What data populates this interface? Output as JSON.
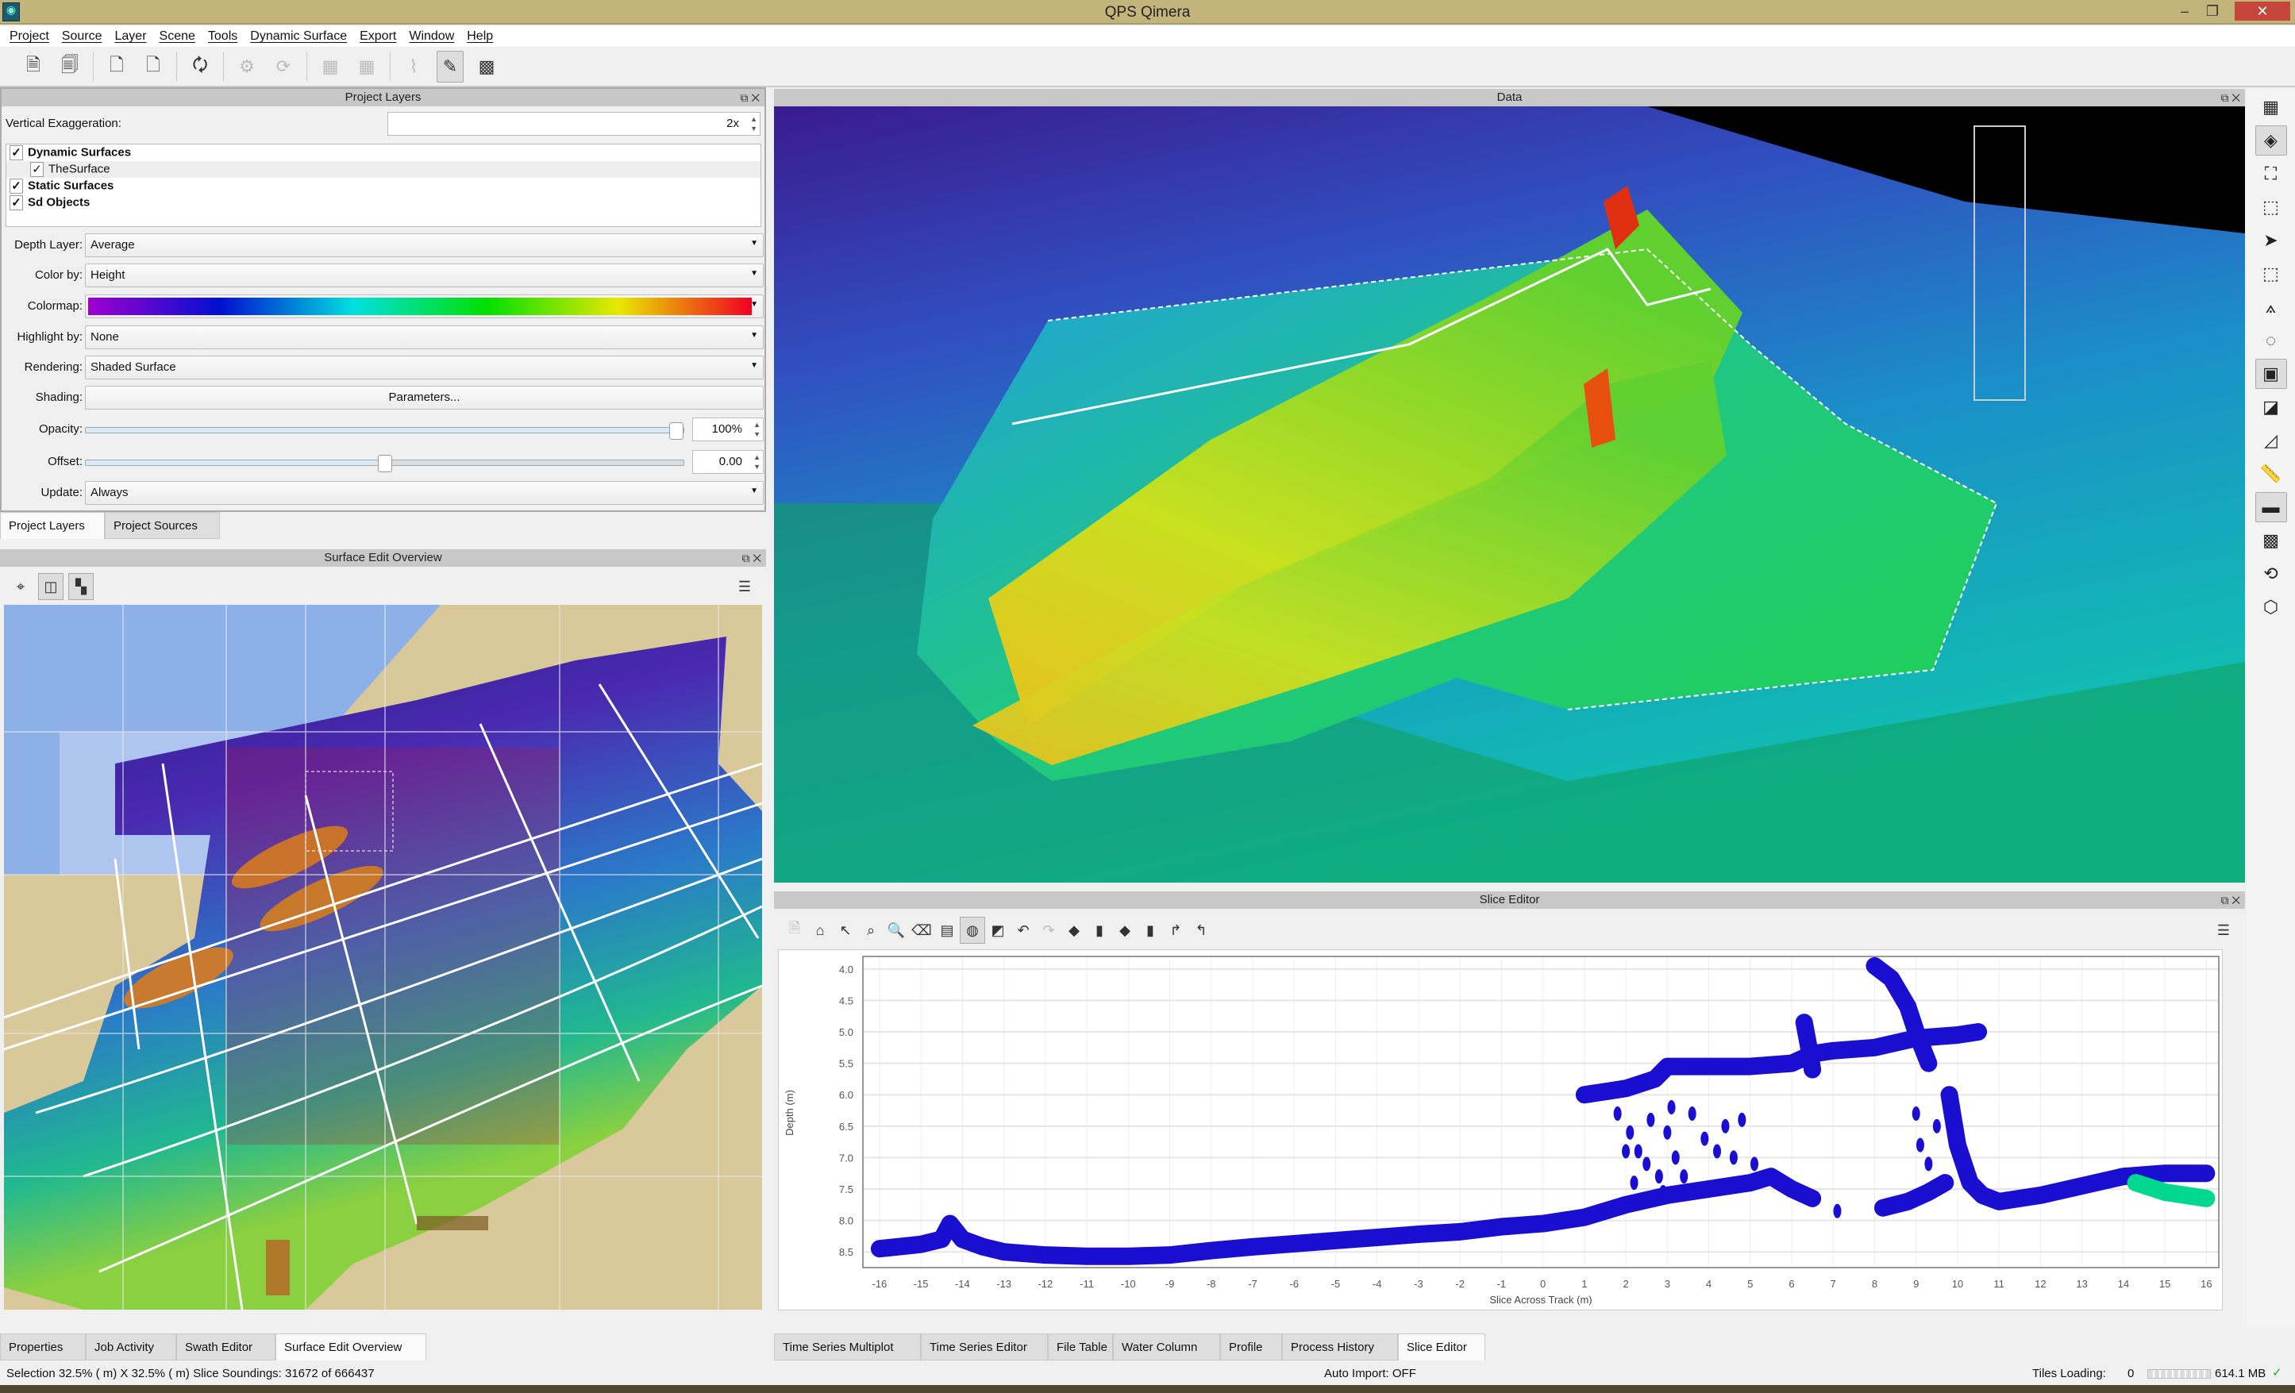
{
  "window": {
    "title": "QPS Qimera",
    "minimize": "–",
    "restore": "❐",
    "close": "✕"
  },
  "menu": [
    "Project",
    "Source",
    "Layer",
    "Scene",
    "Tools",
    "Dynamic Surface",
    "Export",
    "Window",
    "Help"
  ],
  "project_layers": {
    "title": "Project Layers",
    "vertical_exaggeration_label": "Vertical Exaggeration:",
    "vertical_exaggeration": "2x",
    "layers": [
      {
        "label": "Dynamic Surfaces",
        "checked": true,
        "bold": true
      },
      {
        "label": "TheSurface",
        "checked": true,
        "bold": false
      },
      {
        "label": "Static Surfaces",
        "checked": true,
        "bold": true
      },
      {
        "label": "Sd Objects",
        "checked": true,
        "bold": true
      }
    ],
    "depth_layer_label": "Depth Layer:",
    "depth_layer": "Average",
    "color_by_label": "Color by:",
    "color_by": "Height",
    "colormap_label": "Colormap:",
    "colormap_colors": [
      "#a000d0",
      "#0010d0",
      "#00e0e0",
      "#00e000",
      "#e8e800",
      "#f00020"
    ],
    "highlight_by_label": "Highlight by:",
    "highlight_by": "None",
    "rendering_label": "Rendering:",
    "rendering": "Shaded Surface",
    "shading_label": "Shading:",
    "shading_button": "Parameters...",
    "opacity_label": "Opacity:",
    "opacity": "100%",
    "opacity_fraction": 1.0,
    "offset_label": "Offset:",
    "offset": "0.00",
    "offset_fraction": 0.5,
    "update_label": "Update:",
    "update": "Always",
    "tabs": [
      "Project Layers",
      "Project Sources"
    ]
  },
  "surface_edit_overview": {
    "title": "Surface Edit Overview"
  },
  "data_view": {
    "title": "Data"
  },
  "slice_editor": {
    "title": "Slice Editor"
  },
  "chart_data": {
    "type": "scatter",
    "xlabel": "Slice Across Track (m)",
    "ylabel": "Depth (m)",
    "xlim": [
      -16.4,
      16.3
    ],
    "ylim": [
      3.8,
      8.75
    ],
    "y_inverted": true,
    "grid": true,
    "xticks": [
      -16,
      -15,
      -14,
      -13,
      -12,
      -11,
      -10,
      -9,
      -8,
      -7,
      -6,
      -5,
      -4,
      -3,
      -2,
      -1,
      0,
      1,
      2,
      3,
      4,
      5,
      6,
      7,
      8,
      9,
      10,
      11,
      12,
      13,
      14,
      15,
      16
    ],
    "yticks": [
      "4.0",
      "4.5",
      "5.0",
      "5.5",
      "6.0",
      "6.5",
      "7.0",
      "7.5",
      "8.0",
      "8.5"
    ],
    "series": [
      {
        "color": "#1a0fd0",
        "profile": [
          [
            -16,
            8.45
          ],
          [
            -15,
            8.38
          ],
          [
            -14.5,
            8.3
          ],
          [
            -14.3,
            8.05
          ],
          [
            -14,
            8.3
          ],
          [
            -13.5,
            8.42
          ],
          [
            -13,
            8.5
          ],
          [
            -12,
            8.55
          ],
          [
            -11,
            8.57
          ],
          [
            -10,
            8.57
          ],
          [
            -9,
            8.55
          ],
          [
            -8,
            8.48
          ],
          [
            -7,
            8.42
          ],
          [
            -6,
            8.37
          ],
          [
            -5,
            8.32
          ],
          [
            -4,
            8.27
          ],
          [
            -3,
            8.22
          ],
          [
            -2,
            8.18
          ],
          [
            -1,
            8.1
          ],
          [
            0,
            8.05
          ],
          [
            1,
            7.95
          ],
          [
            2,
            7.75
          ],
          [
            3,
            7.6
          ],
          [
            4,
            7.5
          ],
          [
            5,
            7.4
          ],
          [
            5.5,
            7.3
          ],
          [
            6,
            7.5
          ],
          [
            6.5,
            7.65
          ]
        ]
      },
      {
        "color": "#1a0fd0",
        "profile": [
          [
            1,
            6.0
          ],
          [
            2,
            5.9
          ],
          [
            2.7,
            5.75
          ],
          [
            3,
            5.55
          ],
          [
            4,
            5.55
          ],
          [
            5,
            5.55
          ],
          [
            6,
            5.5
          ],
          [
            6.5,
            5.35
          ],
          [
            7,
            5.3
          ],
          [
            8,
            5.25
          ],
          [
            9,
            5.1
          ],
          [
            10,
            5.05
          ],
          [
            10.5,
            5.0
          ]
        ]
      },
      {
        "color": "#1a0fd0",
        "profile": [
          [
            8,
            3.95
          ],
          [
            8.4,
            4.15
          ],
          [
            8.8,
            4.6
          ],
          [
            9,
            5.0
          ],
          [
            9.3,
            5.5
          ]
        ]
      },
      {
        "color": "#1a0fd0",
        "profile": [
          [
            6.3,
            4.85
          ],
          [
            6.4,
            5.2
          ],
          [
            6.5,
            5.6
          ]
        ]
      },
      {
        "color": "#1a0fd0",
        "profile": [
          [
            9.8,
            6.0
          ],
          [
            10,
            6.8
          ],
          [
            10.3,
            7.4
          ],
          [
            10.6,
            7.6
          ],
          [
            11,
            7.7
          ],
          [
            12,
            7.6
          ],
          [
            13,
            7.45
          ],
          [
            14,
            7.3
          ],
          [
            15,
            7.25
          ],
          [
            16,
            7.25
          ]
        ]
      },
      {
        "color": "#00d890",
        "profile": [
          [
            14.3,
            7.4
          ],
          [
            15,
            7.55
          ],
          [
            16,
            7.65
          ]
        ]
      },
      {
        "color": "#1a0fd0",
        "profile": [
          [
            8.2,
            7.8
          ],
          [
            8.8,
            7.7
          ],
          [
            9.3,
            7.55
          ],
          [
            9.7,
            7.4
          ]
        ]
      }
    ],
    "scatter_points": [
      [
        1.8,
        6.3
      ],
      [
        2.1,
        6.6
      ],
      [
        2.3,
        6.9
      ],
      [
        2.5,
        7.1
      ],
      [
        2.8,
        7.3
      ],
      [
        3.0,
        6.6
      ],
      [
        3.2,
        7.0
      ],
      [
        3.4,
        7.3
      ],
      [
        2.6,
        6.4
      ],
      [
        3.6,
        6.3
      ],
      [
        3.9,
        6.7
      ],
      [
        4.2,
        6.9
      ],
      [
        4.6,
        7.0
      ],
      [
        4.8,
        6.4
      ],
      [
        4.9,
        7.4
      ],
      [
        5.1,
        7.1
      ],
      [
        2.2,
        7.4
      ],
      [
        2.9,
        7.55
      ],
      [
        4.4,
        6.5
      ],
      [
        3.1,
        6.2
      ],
      [
        2.0,
        6.9
      ],
      [
        9.0,
        6.3
      ],
      [
        9.1,
        6.8
      ],
      [
        9.3,
        7.1
      ],
      [
        9.0,
        7.65
      ],
      [
        9.5,
        6.5
      ],
      [
        7.1,
        7.85
      ]
    ]
  },
  "bottom_tabs_left": [
    "Properties",
    "Job Activity",
    "Swath Editor",
    "Surface Edit Overview"
  ],
  "bottom_tabs_right": [
    "Time Series Multiplot",
    "Time Series Editor",
    "File Table",
    "Water Column",
    "Profile",
    "Process History",
    "Slice Editor"
  ],
  "status": {
    "selection": "Selection 32.5% ( m) X 32.5% ( m)  Slice Soundings: 31672 of 666437",
    "auto_import": "Auto Import: OFF",
    "tiles_loading_label": "Tiles Loading:",
    "tiles_loading": "0",
    "memory": "614.1 MB"
  }
}
